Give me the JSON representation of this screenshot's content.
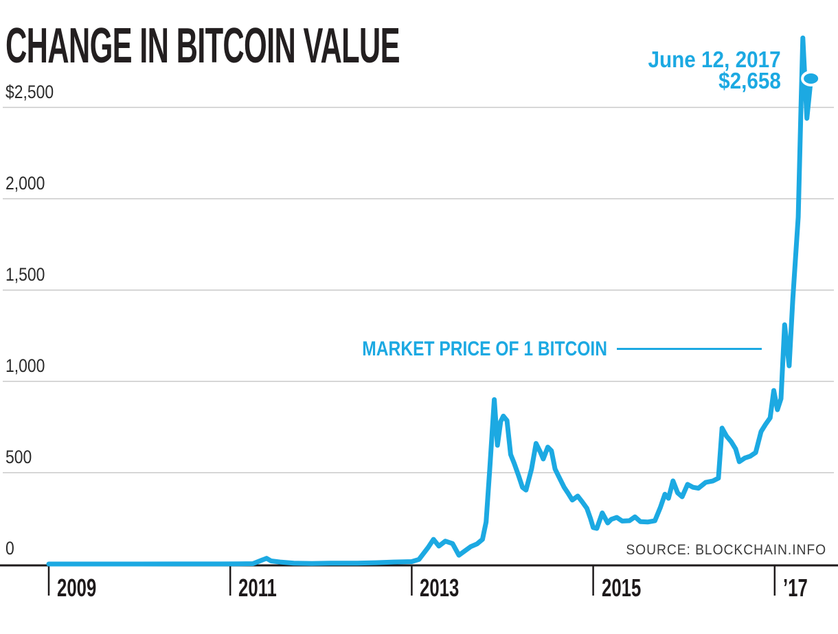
{
  "header": {
    "title": "CHANGE IN BITCOIN VALUE"
  },
  "annotation": {
    "date": "June 12, 2017",
    "price": "$2,658"
  },
  "series_label": "MARKET PRICE OF 1 BITCOIN",
  "source": "SOURCE: BLOCKCHAIN.INFO",
  "colors": {
    "line": "#1CA9E2",
    "ink": "#1E1A1B",
    "grid": "#C9C9C9"
  },
  "chart_data": {
    "type": "line",
    "title": "CHANGE IN BITCOIN VALUE",
    "series_name": "Market price of 1 bitcoin (USD)",
    "x_unit": "year (decimal)",
    "xlim": [
      2009,
      2017.6
    ],
    "ylim": [
      0,
      2900
    ],
    "grid": true,
    "y_ticks": [
      {
        "label": "$2,500",
        "value": 2500
      },
      {
        "label": "2,000",
        "value": 2000
      },
      {
        "label": "1,500",
        "value": 1500
      },
      {
        "label": "1,000",
        "value": 1000
      },
      {
        "label": "500",
        "value": 500
      },
      {
        "label": "0",
        "value": 0
      }
    ],
    "x_ticks": [
      {
        "label": "2009",
        "value": 2009
      },
      {
        "label": "2011",
        "value": 2011
      },
      {
        "label": "2013",
        "value": 2013
      },
      {
        "label": "2015",
        "value": 2015
      },
      {
        "label": "’17",
        "value": 2017
      }
    ],
    "end_point": {
      "date": "June 12, 2017",
      "value": 2658,
      "x": 2017.4
    },
    "series": [
      {
        "name": "MARKET PRICE OF 1 BITCOIN",
        "points": [
          [
            2009.0,
            0
          ],
          [
            2009.5,
            0
          ],
          [
            2010.0,
            0
          ],
          [
            2010.5,
            0.2
          ],
          [
            2010.9,
            0.3
          ],
          [
            2011.1,
            1
          ],
          [
            2011.25,
            2
          ],
          [
            2011.4,
            31
          ],
          [
            2011.45,
            17
          ],
          [
            2011.55,
            11
          ],
          [
            2011.7,
            5
          ],
          [
            2011.9,
            3
          ],
          [
            2012.1,
            5
          ],
          [
            2012.4,
            5
          ],
          [
            2012.6,
            7
          ],
          [
            2012.8,
            11
          ],
          [
            2013.0,
            13
          ],
          [
            2013.08,
            25
          ],
          [
            2013.18,
            90
          ],
          [
            2013.24,
            135
          ],
          [
            2013.3,
            98
          ],
          [
            2013.37,
            125
          ],
          [
            2013.45,
            112
          ],
          [
            2013.52,
            48
          ],
          [
            2013.58,
            70
          ],
          [
            2013.65,
            95
          ],
          [
            2013.72,
            110
          ],
          [
            2013.78,
            135
          ],
          [
            2013.82,
            230
          ],
          [
            2013.86,
            520
          ],
          [
            2013.91,
            900
          ],
          [
            2013.945,
            650
          ],
          [
            2013.98,
            780
          ],
          [
            2014.01,
            810
          ],
          [
            2014.05,
            785
          ],
          [
            2014.09,
            600
          ],
          [
            2014.13,
            550
          ],
          [
            2014.18,
            480
          ],
          [
            2014.22,
            420
          ],
          [
            2014.26,
            405
          ],
          [
            2014.32,
            520
          ],
          [
            2014.37,
            660
          ],
          [
            2014.42,
            610
          ],
          [
            2014.45,
            575
          ],
          [
            2014.5,
            640
          ],
          [
            2014.54,
            620
          ],
          [
            2014.58,
            520
          ],
          [
            2014.63,
            470
          ],
          [
            2014.68,
            420
          ],
          [
            2014.72,
            390
          ],
          [
            2014.77,
            350
          ],
          [
            2014.83,
            372
          ],
          [
            2014.88,
            340
          ],
          [
            2014.93,
            305
          ],
          [
            2014.97,
            250
          ],
          [
            2015.0,
            200
          ],
          [
            2015.04,
            195
          ],
          [
            2015.1,
            280
          ],
          [
            2015.16,
            225
          ],
          [
            2015.2,
            245
          ],
          [
            2015.26,
            255
          ],
          [
            2015.32,
            235
          ],
          [
            2015.4,
            237
          ],
          [
            2015.46,
            258
          ],
          [
            2015.52,
            232
          ],
          [
            2015.6,
            230
          ],
          [
            2015.68,
            237
          ],
          [
            2015.74,
            310
          ],
          [
            2015.79,
            382
          ],
          [
            2015.83,
            360
          ],
          [
            2015.88,
            455
          ],
          [
            2015.93,
            390
          ],
          [
            2015.98,
            368
          ],
          [
            2016.04,
            436
          ],
          [
            2016.1,
            420
          ],
          [
            2016.16,
            415
          ],
          [
            2016.24,
            447
          ],
          [
            2016.32,
            455
          ],
          [
            2016.38,
            470
          ],
          [
            2016.42,
            744
          ],
          [
            2016.47,
            700
          ],
          [
            2016.52,
            670
          ],
          [
            2016.57,
            630
          ],
          [
            2016.61,
            560
          ],
          [
            2016.67,
            580
          ],
          [
            2016.73,
            590
          ],
          [
            2016.79,
            610
          ],
          [
            2016.85,
            725
          ],
          [
            2016.9,
            765
          ],
          [
            2016.95,
            800
          ],
          [
            2016.99,
            950
          ],
          [
            2017.03,
            845
          ],
          [
            2017.07,
            905
          ],
          [
            2017.11,
            1310
          ],
          [
            2017.16,
            1085
          ],
          [
            2017.2,
            1450
          ],
          [
            2017.26,
            1900
          ],
          [
            2017.29,
            2500
          ],
          [
            2017.31,
            2880
          ],
          [
            2017.355,
            2440
          ],
          [
            2017.4,
            2658
          ]
        ]
      }
    ]
  }
}
